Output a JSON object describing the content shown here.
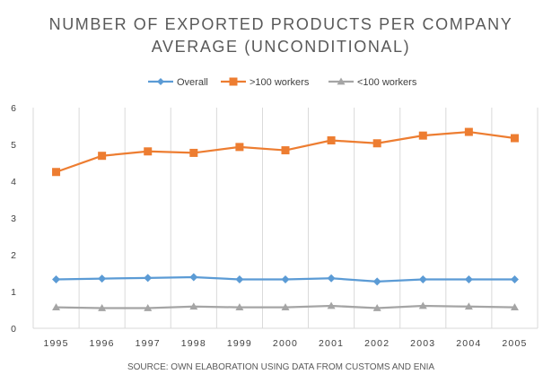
{
  "chart_data": {
    "type": "line",
    "title_lines": [
      "NUMBER OF EXPORTED PRODUCTS PER COMPANY",
      "AVERAGE (UNCONDITIONAL)"
    ],
    "x": [
      "1995",
      "1996",
      "1997",
      "1998",
      "1999",
      "2000",
      "2001",
      "2002",
      "2003",
      "2004",
      "2005"
    ],
    "series": [
      {
        "name": "Overall",
        "color": "#5B9BD5",
        "marker": "diamond",
        "values": [
          1.33,
          1.35,
          1.37,
          1.39,
          1.33,
          1.33,
          1.36,
          1.27,
          1.33,
          1.33,
          1.33
        ]
      },
      {
        "name": ">100 workers",
        "color": "#ED7D31",
        "marker": "square",
        "values": [
          4.25,
          4.69,
          4.81,
          4.77,
          4.93,
          4.84,
          5.11,
          5.03,
          5.24,
          5.34,
          5.17
        ]
      },
      {
        "name": "<100 workers",
        "color": "#A5A5A5",
        "marker": "triangle",
        "values": [
          0.57,
          0.55,
          0.55,
          0.59,
          0.57,
          0.57,
          0.61,
          0.55,
          0.61,
          0.59,
          0.57
        ]
      }
    ],
    "y_ticks": [
      "0",
      "1",
      "2",
      "3",
      "4",
      "5",
      "6"
    ],
    "ylim": [
      0,
      6
    ],
    "grid": "vertical",
    "legend_position": "top",
    "xlabel": "",
    "ylabel": "",
    "source": "SOURCE: OWN ELABORATION USING DATA FROM CUSTOMS AND ENIA"
  }
}
